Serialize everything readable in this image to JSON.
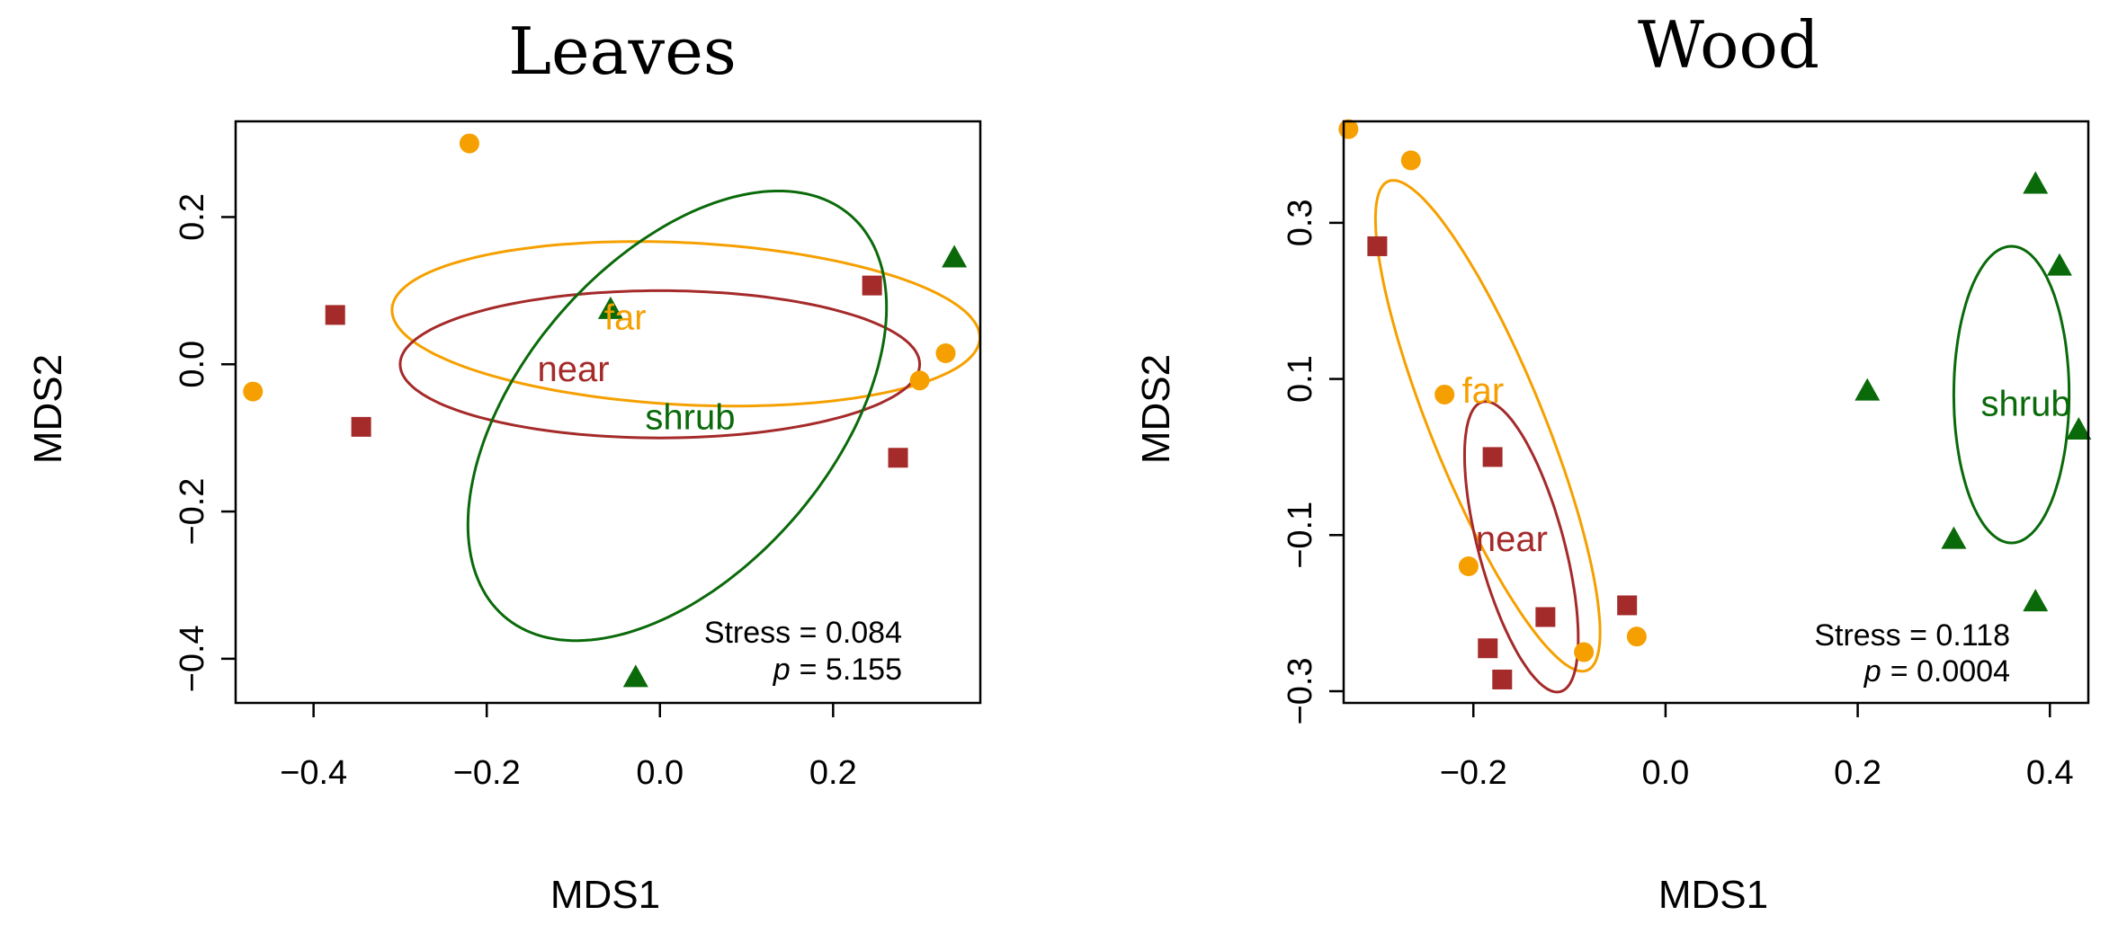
{
  "colors": {
    "far": "#F5A000",
    "near": "#A52A2A",
    "shrub": "#0A6A0A"
  },
  "chart_data": [
    {
      "type": "scatter",
      "title": "Leaves",
      "xlabel": "MDS1",
      "ylabel": "MDS2",
      "xlim": [
        -0.49,
        0.37
      ],
      "ylim": [
        -0.46,
        0.33
      ],
      "xticks": [
        -0.4,
        -0.2,
        0.0,
        0.2
      ],
      "xtick_labels": [
        "−0.4",
        "−0.2",
        "0.0",
        "0.2"
      ],
      "yticks": [
        -0.4,
        -0.2,
        0.0,
        0.2
      ],
      "ytick_labels": [
        "−0.4",
        "−0.2",
        "0.0",
        "0.2"
      ],
      "stress_text": "Stress = 0.084",
      "p_label": "p",
      "p_value": "= 5.155",
      "series": [
        {
          "name": "far",
          "marker": "circle",
          "color": "#F5A000",
          "points": [
            [
              -0.47,
              -0.037
            ],
            [
              -0.22,
              0.3
            ],
            [
              0.33,
              0.015
            ],
            [
              0.3,
              -0.022
            ]
          ],
          "ellipse": {
            "cx": 0.03,
            "cy": 0.055,
            "rx": 0.34,
            "ry": 0.11,
            "angle": -3.5
          },
          "label_pos": [
            -0.04,
            0.06
          ]
        },
        {
          "name": "near",
          "marker": "square",
          "color": "#A52A2A",
          "points": [
            [
              -0.375,
              0.067
            ],
            [
              -0.345,
              -0.085
            ],
            [
              0.245,
              0.107
            ],
            [
              0.275,
              -0.127
            ]
          ],
          "ellipse": {
            "cx": 0.0,
            "cy": 0.0,
            "rx": 0.3,
            "ry": 0.1,
            "angle": 0
          },
          "label_pos": [
            -0.1,
            -0.01
          ]
        },
        {
          "name": "shrub",
          "marker": "triangle",
          "color": "#0A6A0A",
          "points": [
            [
              -0.057,
              0.075
            ],
            [
              0.34,
              0.145
            ],
            [
              -0.028,
              -0.425
            ]
          ],
          "ellipse": {
            "cx": 0.02,
            "cy": -0.07,
            "rx": 0.19,
            "ry": 0.34,
            "angle": -32
          },
          "label_pos": [
            0.035,
            -0.075
          ]
        }
      ]
    },
    {
      "type": "scatter",
      "title": "Wood",
      "xlabel": "MDS1",
      "ylabel": "MDS2",
      "xlim": [
        -0.335,
        0.44
      ],
      "ylim": [
        -0.315,
        0.43
      ],
      "xticks": [
        -0.2,
        0.0,
        0.2,
        0.4
      ],
      "xtick_labels": [
        "−0.2",
        "0.0",
        "0.2",
        "0.4"
      ],
      "yticks": [
        -0.3,
        -0.1,
        0.1,
        0.3
      ],
      "ytick_labels": [
        "−0.3",
        "−0.1",
        "0.1",
        "0.3"
      ],
      "stress_text": "Stress = 0.118",
      "p_label": "p",
      "p_value": "= 0.0004",
      "series": [
        {
          "name": "far",
          "marker": "circle",
          "color": "#F5A000",
          "points": [
            [
              -0.33,
              0.42
            ],
            [
              -0.265,
              0.38
            ],
            [
              -0.23,
              0.08
            ],
            [
              -0.205,
              -0.14
            ],
            [
              -0.085,
              -0.25
            ],
            [
              -0.03,
              -0.23
            ]
          ],
          "ellipse": {
            "cx": -0.185,
            "cy": 0.04,
            "rx": 0.06,
            "ry": 0.33,
            "angle": 18
          },
          "label_pos": [
            -0.19,
            0.082
          ]
        },
        {
          "name": "near",
          "marker": "square",
          "color": "#A52A2A",
          "points": [
            [
              -0.3,
              0.27
            ],
            [
              -0.18,
              0.0
            ],
            [
              -0.125,
              -0.205
            ],
            [
              -0.04,
              -0.19
            ],
            [
              -0.185,
              -0.245
            ],
            [
              -0.17,
              -0.285
            ]
          ],
          "ellipse": {
            "cx": -0.15,
            "cy": -0.115,
            "rx": 0.045,
            "ry": 0.19,
            "angle": 12
          },
          "label_pos": [
            -0.16,
            -0.108
          ]
        },
        {
          "name": "shrub",
          "marker": "triangle",
          "color": "#0A6A0A",
          "points": [
            [
              0.385,
              0.35
            ],
            [
              0.41,
              0.245
            ],
            [
              0.21,
              0.085
            ],
            [
              0.43,
              0.035
            ],
            [
              0.3,
              -0.105
            ],
            [
              0.385,
              -0.185
            ]
          ],
          "ellipse": {
            "cx": 0.36,
            "cy": 0.08,
            "rx": 0.06,
            "ry": 0.19,
            "angle": 0
          },
          "label_pos": [
            0.375,
            0.065
          ]
        }
      ]
    }
  ]
}
